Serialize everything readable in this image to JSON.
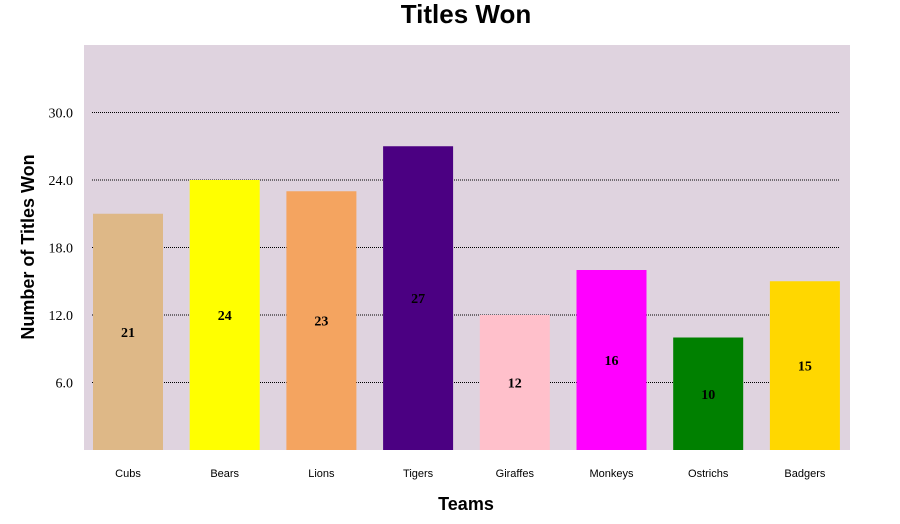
{
  "chart_data": {
    "type": "bar",
    "title": "Titles Won",
    "xlabel": "Teams",
    "ylabel": "Number of Titles Won",
    "categories": [
      "Cubs",
      "Bears",
      "Lions",
      "Tigers",
      "Giraffes",
      "Monkeys",
      "Ostrichs",
      "Badgers"
    ],
    "values": [
      21,
      24,
      23,
      27,
      12,
      16,
      10,
      15
    ],
    "colors": [
      "#deb887",
      "#ffff00",
      "#f4a460",
      "#4b0082",
      "#ffc0cb",
      "#ff00ff",
      "#008000",
      "#ffd700"
    ],
    "ylim": [
      0,
      36
    ],
    "yticks": [
      "6.0",
      "12.0",
      "18.0",
      "24.0",
      "30.0"
    ],
    "grid": true,
    "plot_background": "#dfd3df"
  }
}
